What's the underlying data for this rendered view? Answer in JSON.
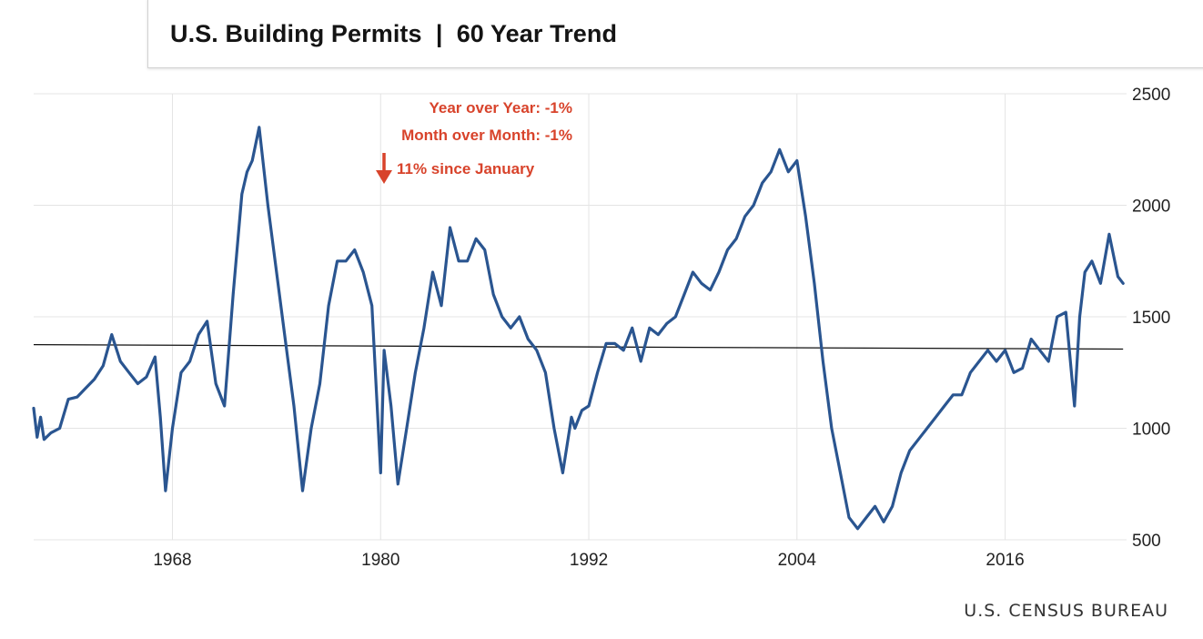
{
  "title": "U.S. Building Permits  |  60 Year Trend",
  "source": "U.S. CENSUS BUREAU",
  "colors": {
    "series": "#2a5590",
    "annotation": "#d8432b",
    "grid": "#e4e4e4",
    "trend_line": "#111111"
  },
  "annotations": {
    "yoy": "Year over Year:  -1%",
    "mom": "Month over Month:  -1%",
    "ytd": "11% since January",
    "ytd_icon": "down-arrow-icon"
  },
  "chart_data": {
    "type": "line",
    "title": "U.S. Building Permits  |  60 Year Trend",
    "xlabel": "",
    "ylabel": "",
    "x_ticks": [
      "1968",
      "1980",
      "1992",
      "2004",
      "2016"
    ],
    "x_tick_values": [
      1968,
      1980,
      1992,
      2004,
      2016
    ],
    "y_ticks": [
      "500",
      "1000",
      "1500",
      "2000",
      "2500"
    ],
    "y_tick_values": [
      500,
      1000,
      1500,
      2000,
      2500
    ],
    "xlim": [
      1960,
      2023
    ],
    "ylim": [
      500,
      2500
    ],
    "grid": true,
    "y_axis_position": "right",
    "series": [
      {
        "x": [
          1960.0,
          1960.2,
          1960.4,
          1960.6,
          1961.0,
          1961.5,
          1962.0,
          1962.5,
          1963.0,
          1963.5,
          1964.0,
          1964.5,
          1965.0,
          1965.5,
          1966.0,
          1966.5,
          1967.0,
          1967.3,
          1967.6,
          1968.0,
          1968.5,
          1969.0,
          1969.5,
          1970.0,
          1970.5,
          1971.0,
          1971.5,
          1972.0,
          1972.3,
          1972.6,
          1973.0,
          1973.5,
          1974.0,
          1974.5,
          1975.0,
          1975.5,
          1976.0,
          1976.5,
          1977.0,
          1977.5,
          1978.0,
          1978.5,
          1979.0,
          1979.5,
          1980.0,
          1980.2,
          1980.6,
          1981.0,
          1981.5,
          1982.0,
          1982.5,
          1983.0,
          1983.5,
          1984.0,
          1984.5,
          1985.0,
          1985.5,
          1986.0,
          1986.5,
          1987.0,
          1987.5,
          1988.0,
          1988.5,
          1989.0,
          1989.5,
          1990.0,
          1990.5,
          1991.0,
          1991.2,
          1991.6,
          1992.0,
          1992.5,
          1993.0,
          1993.5,
          1994.0,
          1994.5,
          1995.0,
          1995.5,
          1996.0,
          1996.5,
          1997.0,
          1997.5,
          1998.0,
          1998.5,
          1999.0,
          1999.5,
          2000.0,
          2000.5,
          2001.0,
          2001.5,
          2002.0,
          2002.5,
          2003.0,
          2003.5,
          2004.0,
          2004.5,
          2005.0,
          2005.5,
          2006.0,
          2006.5,
          2007.0,
          2007.5,
          2008.0,
          2008.5,
          2009.0,
          2009.5,
          2010.0,
          2010.5,
          2011.0,
          2011.5,
          2012.0,
          2012.5,
          2013.0,
          2013.5,
          2014.0,
          2014.5,
          2015.0,
          2015.5,
          2016.0,
          2016.5,
          2017.0,
          2017.5,
          2018.0,
          2018.5,
          2019.0,
          2019.5,
          2020.0,
          2020.3,
          2020.6,
          2021.0,
          2021.5,
          2022.0,
          2022.5,
          2022.8
        ],
        "y": [
          1090,
          960,
          1050,
          950,
          980,
          1000,
          1130,
          1140,
          1180,
          1220,
          1280,
          1420,
          1300,
          1250,
          1200,
          1230,
          1320,
          1050,
          720,
          1000,
          1250,
          1300,
          1420,
          1480,
          1200,
          1100,
          1600,
          2050,
          2150,
          2200,
          2350,
          2000,
          1700,
          1400,
          1100,
          720,
          1000,
          1200,
          1550,
          1750,
          1750,
          1800,
          1700,
          1550,
          800,
          1350,
          1100,
          750,
          1000,
          1250,
          1450,
          1700,
          1550,
          1900,
          1750,
          1750,
          1850,
          1800,
          1600,
          1500,
          1450,
          1500,
          1400,
          1350,
          1250,
          1000,
          800,
          1050,
          1000,
          1080,
          1100,
          1250,
          1380,
          1380,
          1350,
          1450,
          1300,
          1450,
          1420,
          1470,
          1500,
          1600,
          1700,
          1650,
          1620,
          1700,
          1800,
          1850,
          1950,
          2000,
          2100,
          2150,
          2250,
          2150,
          2200,
          1950,
          1650,
          1300,
          1000,
          800,
          600,
          550,
          600,
          650,
          580,
          650,
          800,
          900,
          950,
          1000,
          1050,
          1100,
          1150,
          1150,
          1250,
          1300,
          1350,
          1300,
          1350,
          1250,
          1270,
          1400,
          1350,
          1300,
          1500,
          1520,
          1100,
          1500,
          1700,
          1750,
          1650,
          1870,
          1680,
          1650
        ]
      }
    ],
    "reference_line": {
      "type": "trend",
      "start": [
        1960,
        1375
      ],
      "end": [
        2022.8,
        1355
      ]
    }
  }
}
